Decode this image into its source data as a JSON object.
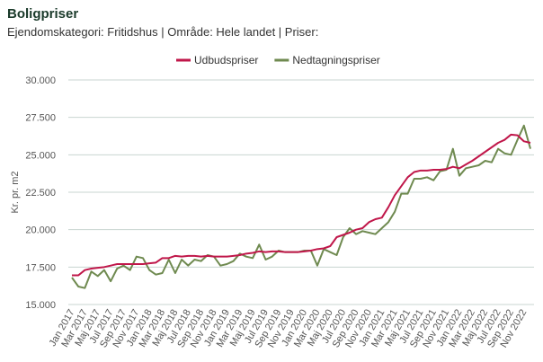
{
  "chart_data": {
    "type": "line",
    "title": "Boligpriser",
    "subtitle": "Ejendomskategori: Fritidshus | Område: Hele landet | Priser:",
    "y_label": "Kr. pr. m2",
    "categories": [
      "Jan 2017",
      null,
      "Mar 2017",
      null,
      "Maj 2017",
      null,
      "Jul 2017",
      null,
      "Sep 2017",
      null,
      "Nov 2017",
      null,
      "Jan 2018",
      null,
      "Mar 2018",
      null,
      "Maj 2018",
      null,
      "Jul 2018",
      null,
      "Sep 2018",
      null,
      "Nov 2018",
      null,
      "Jan 2019",
      null,
      "Mar 2019",
      null,
      "Maj 2019",
      null,
      "Jul 2019",
      null,
      "Sep 2019",
      null,
      "Nov 2019",
      null,
      "Jan 2020",
      null,
      "Mar 2020",
      null,
      "Maj 2020",
      null,
      "Jul 2020",
      null,
      "Sep 2020",
      null,
      "Nov 2020",
      null,
      "Jan 2021",
      null,
      "Mar 2021",
      null,
      "Maj 2021",
      null,
      "Jul 2021",
      null,
      "Sep 2021",
      null,
      "Nov 2021",
      null,
      "Jan 2022",
      null,
      "Mar 2022",
      null,
      "Maj 2022",
      null,
      "Jul 2022",
      null,
      "Sep 2022",
      null,
      "Nov 2022",
      null
    ],
    "series": [
      {
        "name": "Udbudspriser",
        "color": "#c0174a",
        "values": [
          16950,
          16950,
          17300,
          17400,
          17450,
          17500,
          17600,
          17700,
          17700,
          17700,
          17700,
          17700,
          17750,
          17800,
          18100,
          18100,
          18250,
          18200,
          18250,
          18250,
          18200,
          18250,
          18200,
          18200,
          18200,
          18250,
          18300,
          18400,
          18450,
          18550,
          18500,
          18550,
          18550,
          18500,
          18500,
          18500,
          18550,
          18600,
          18700,
          18750,
          18900,
          19500,
          19650,
          19800,
          20000,
          20100,
          20500,
          20700,
          20800,
          21500,
          22300,
          22900,
          23500,
          23850,
          23950,
          23950,
          24000,
          24000,
          24050,
          24200,
          24100,
          24350,
          24600,
          24900,
          25200,
          25500,
          25800,
          26000,
          26350,
          26300,
          25900,
          25800
        ]
      },
      {
        "name": "Nedtagningspriser",
        "color": "#6f8a50",
        "values": [
          16800,
          16200,
          16100,
          17200,
          16900,
          17300,
          16550,
          17400,
          17600,
          17300,
          18200,
          18100,
          17300,
          17000,
          17100,
          18000,
          17100,
          18000,
          17600,
          18000,
          17900,
          18300,
          18200,
          17600,
          17700,
          17900,
          18400,
          18200,
          18100,
          19000,
          18000,
          18200,
          18600,
          18500,
          18500,
          18500,
          18600,
          18600,
          17600,
          18700,
          18500,
          18300,
          19500,
          20100,
          19700,
          19900,
          19800,
          19700,
          20100,
          20500,
          21200,
          22400,
          22400,
          23400,
          23400,
          23500,
          23300,
          23900,
          24000,
          25400,
          23600,
          24100,
          24200,
          24300,
          24600,
          24500,
          25400,
          25100,
          25000,
          26000,
          26950,
          25400
        ]
      }
    ],
    "ylim": [
      15000,
      30000
    ],
    "yticks": [
      {
        "value": 15000,
        "label": "15.000"
      },
      {
        "value": 17500,
        "label": "17.500"
      },
      {
        "value": 20000,
        "label": "20.000"
      },
      {
        "value": 22500,
        "label": "22.500"
      },
      {
        "value": 25000,
        "label": "25.000"
      },
      {
        "value": 27500,
        "label": "27.500"
      },
      {
        "value": 30000,
        "label": "30.000"
      }
    ],
    "grid": true
  }
}
